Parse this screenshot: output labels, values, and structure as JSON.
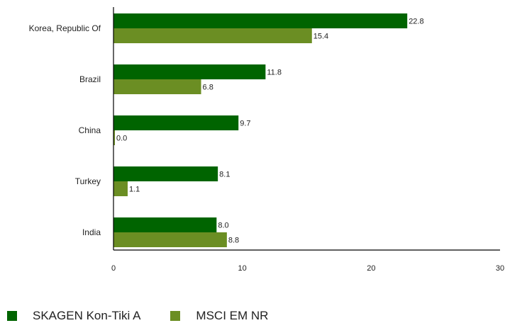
{
  "chart_data": {
    "type": "bar",
    "orientation": "horizontal",
    "categories": [
      "Korea, Republic Of",
      "Brazil",
      "China",
      "Turkey",
      "India"
    ],
    "series": [
      {
        "name": "SKAGEN Kon-Tiki A",
        "values": [
          22.8,
          11.8,
          9.7,
          8.1,
          8.0
        ],
        "color": "#006400"
      },
      {
        "name": "MSCI EM NR",
        "values": [
          15.4,
          6.8,
          0.0,
          1.1,
          8.8
        ],
        "color": "#6b8e23"
      }
    ],
    "value_labels": [
      [
        "22.8",
        "11.8",
        "9.7",
        "8.1",
        "8.0"
      ],
      [
        "15.4",
        "6.8",
        "0.0",
        "1.1",
        "8.8"
      ]
    ],
    "xlim": [
      0,
      30
    ],
    "xticks": [
      "0",
      "10",
      "20",
      "30"
    ],
    "grid": false,
    "legend_position": "bottom-left"
  }
}
